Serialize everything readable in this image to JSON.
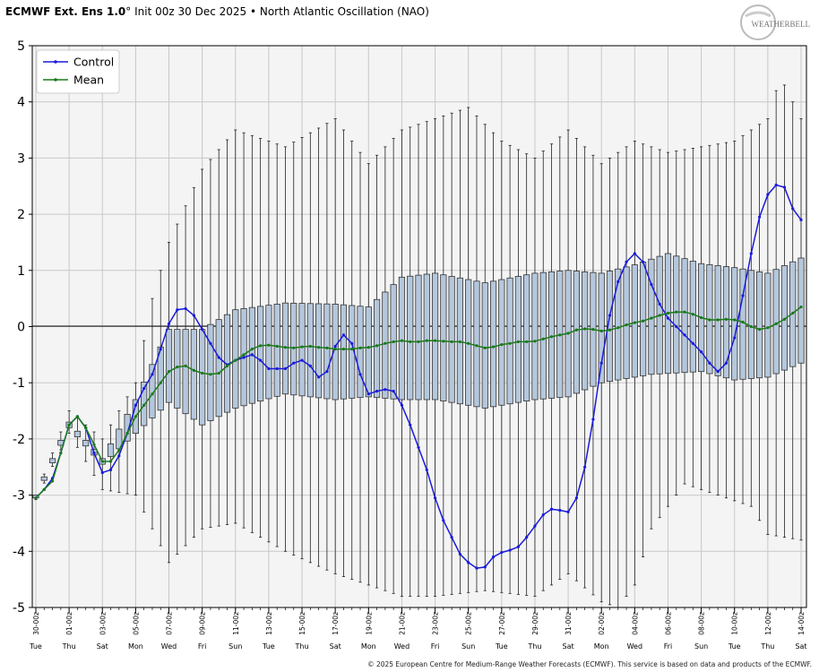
{
  "header": {
    "title_bold": "ECMWF Ext. Ens 1.0",
    "title_deg": "°",
    "title_rest": " Init 00z 30 Dec 2025 • North Atlantic Oscillation (NAO)"
  },
  "logo": {
    "text": "WEATHERBELL"
  },
  "footer": {
    "copyright": "© 2025 European Centre for Medium-Range Weather Forecasts (ECMWF). This service is based on data and products of the ECMWF."
  },
  "colors": {
    "control": "#1a1adc",
    "mean": "#1a7a1a",
    "box_fill": "#b5c7dc",
    "plot_bg": "#f4f4f4"
  },
  "chart_data": {
    "type": "box",
    "ylim": [
      -5,
      5
    ],
    "yticks": [
      -5,
      -4,
      -3,
      -2,
      -1,
      0,
      1,
      2,
      3,
      4,
      5
    ],
    "grid": true,
    "legend_position": "top-left",
    "legend": [
      {
        "name": "Control",
        "color": "#1a1adc"
      },
      {
        "name": "Mean",
        "color": "#1a7a1a"
      }
    ],
    "date_labels": [
      "30-00z",
      "01-00z",
      "03-00z",
      "05-00z",
      "07-00z",
      "09-00z",
      "11-00z",
      "13-00z",
      "15-00z",
      "17-00z",
      "19-00z",
      "21-00z",
      "23-00z",
      "25-00z",
      "27-00z",
      "29-00z",
      "31-00z",
      "02-00z",
      "04-00z",
      "06-00z",
      "08-00z",
      "10-00z",
      "12-00z",
      "14-00z"
    ],
    "day_labels": [
      "Tue",
      "Thu",
      "Sat",
      "Mon",
      "Wed",
      "Fri",
      "Sun",
      "Tue",
      "Thu",
      "Sat",
      "Mon",
      "Wed",
      "Fri",
      "Sun",
      "Tue",
      "Thu",
      "Sat",
      "Mon",
      "Wed",
      "Fri",
      "Sun",
      "Tue",
      "Thu",
      "Sat"
    ],
    "control_keys": [
      [
        0,
        -3.05
      ],
      [
        1,
        -2.9
      ],
      [
        2,
        -2.7
      ],
      [
        3,
        -2.25
      ],
      [
        4,
        -1.75
      ],
      [
        5,
        -1.6
      ],
      [
        6,
        -1.8
      ],
      [
        7,
        -2.25
      ],
      [
        8,
        -2.6
      ],
      [
        9,
        -2.55
      ],
      [
        10,
        -2.3
      ],
      [
        11,
        -1.9
      ],
      [
        12,
        -1.4
      ],
      [
        13,
        -1.1
      ],
      [
        14,
        -0.85
      ],
      [
        15,
        -0.4
      ],
      [
        16,
        0.05
      ],
      [
        17,
        0.3
      ],
      [
        18,
        0.32
      ],
      [
        19,
        0.2
      ],
      [
        20,
        -0.05
      ],
      [
        21,
        -0.3
      ],
      [
        22,
        -0.55
      ],
      [
        23,
        -0.68
      ],
      [
        24,
        -0.6
      ],
      [
        25,
        -0.55
      ],
      [
        26,
        -0.5
      ],
      [
        27,
        -0.6
      ],
      [
        28,
        -0.75
      ],
      [
        29,
        -0.75
      ],
      [
        30,
        -0.75
      ],
      [
        31,
        -0.65
      ],
      [
        32,
        -0.6
      ],
      [
        33,
        -0.7
      ],
      [
        34,
        -0.9
      ],
      [
        35,
        -0.8
      ],
      [
        36,
        -0.35
      ],
      [
        37,
        -0.15
      ],
      [
        38,
        -0.3
      ],
      [
        39,
        -0.85
      ],
      [
        40,
        -1.2
      ],
      [
        41,
        -1.15
      ],
      [
        42,
        -1.12
      ],
      [
        43,
        -1.15
      ],
      [
        44,
        -1.4
      ],
      [
        45,
        -1.75
      ],
      [
        46,
        -2.15
      ],
      [
        47,
        -2.55
      ],
      [
        48,
        -3.05
      ],
      [
        49,
        -3.45
      ],
      [
        50,
        -3.75
      ],
      [
        51,
        -4.05
      ],
      [
        52,
        -4.2
      ],
      [
        53,
        -4.3
      ],
      [
        54,
        -4.28
      ],
      [
        55,
        -4.1
      ],
      [
        56,
        -4.02
      ],
      [
        57,
        -3.98
      ],
      [
        58,
        -3.92
      ],
      [
        59,
        -3.75
      ],
      [
        60,
        -3.55
      ],
      [
        61,
        -3.35
      ],
      [
        62,
        -3.25
      ],
      [
        63,
        -3.27
      ],
      [
        64,
        -3.3
      ],
      [
        65,
        -3.05
      ],
      [
        66,
        -2.5
      ],
      [
        67,
        -1.65
      ],
      [
        68,
        -0.65
      ],
      [
        69,
        0.2
      ],
      [
        70,
        0.8
      ],
      [
        71,
        1.15
      ],
      [
        72,
        1.3
      ],
      [
        73,
        1.15
      ],
      [
        74,
        0.75
      ],
      [
        75,
        0.4
      ],
      [
        76,
        0.15
      ],
      [
        77,
        0.0
      ],
      [
        78,
        -0.15
      ],
      [
        79,
        -0.3
      ],
      [
        80,
        -0.45
      ],
      [
        81,
        -0.65
      ],
      [
        82,
        -0.8
      ],
      [
        83,
        -0.65
      ],
      [
        84,
        -0.2
      ],
      [
        85,
        0.55
      ],
      [
        86,
        1.3
      ],
      [
        87,
        1.95
      ],
      [
        88,
        2.35
      ],
      [
        89,
        2.52
      ],
      [
        90,
        2.48
      ],
      [
        91,
        2.1
      ],
      [
        92,
        1.9
      ]
    ],
    "mean_keys": [
      [
        0,
        -3.05
      ],
      [
        1,
        -2.9
      ],
      [
        2,
        -2.75
      ],
      [
        3,
        -2.25
      ],
      [
        4,
        -1.75
      ],
      [
        5,
        -1.6
      ],
      [
        6,
        -1.8
      ],
      [
        7,
        -2.1
      ],
      [
        8,
        -2.4
      ],
      [
        9,
        -2.4
      ],
      [
        10,
        -2.2
      ],
      [
        11,
        -1.9
      ],
      [
        12,
        -1.6
      ],
      [
        13,
        -1.4
      ],
      [
        14,
        -1.2
      ],
      [
        15,
        -1.0
      ],
      [
        16,
        -0.8
      ],
      [
        17,
        -0.72
      ],
      [
        18,
        -0.7
      ],
      [
        19,
        -0.78
      ],
      [
        20,
        -0.83
      ],
      [
        21,
        -0.85
      ],
      [
        22,
        -0.83
      ],
      [
        23,
        -0.7
      ],
      [
        24,
        -0.6
      ],
      [
        25,
        -0.5
      ],
      [
        26,
        -0.4
      ],
      [
        27,
        -0.34
      ],
      [
        28,
        -0.33
      ],
      [
        29,
        -0.35
      ],
      [
        30,
        -0.37
      ],
      [
        31,
        -0.38
      ],
      [
        32,
        -0.36
      ],
      [
        33,
        -0.35
      ],
      [
        34,
        -0.37
      ],
      [
        35,
        -0.38
      ],
      [
        36,
        -0.4
      ],
      [
        37,
        -0.4
      ],
      [
        38,
        -0.4
      ],
      [
        39,
        -0.38
      ],
      [
        40,
        -0.37
      ],
      [
        41,
        -0.34
      ],
      [
        42,
        -0.3
      ],
      [
        43,
        -0.27
      ],
      [
        44,
        -0.25
      ],
      [
        45,
        -0.27
      ],
      [
        46,
        -0.27
      ],
      [
        47,
        -0.25
      ],
      [
        48,
        -0.25
      ],
      [
        49,
        -0.26
      ],
      [
        50,
        -0.27
      ],
      [
        51,
        -0.27
      ],
      [
        52,
        -0.3
      ],
      [
        53,
        -0.34
      ],
      [
        54,
        -0.38
      ],
      [
        55,
        -0.36
      ],
      [
        56,
        -0.32
      ],
      [
        57,
        -0.3
      ],
      [
        58,
        -0.27
      ],
      [
        59,
        -0.27
      ],
      [
        60,
        -0.26
      ],
      [
        61,
        -0.22
      ],
      [
        62,
        -0.18
      ],
      [
        63,
        -0.15
      ],
      [
        64,
        -0.12
      ],
      [
        65,
        -0.06
      ],
      [
        66,
        -0.04
      ],
      [
        67,
        -0.05
      ],
      [
        68,
        -0.08
      ],
      [
        69,
        -0.06
      ],
      [
        70,
        -0.02
      ],
      [
        71,
        0.03
      ],
      [
        72,
        0.07
      ],
      [
        73,
        0.1
      ],
      [
        74,
        0.15
      ],
      [
        75,
        0.2
      ],
      [
        76,
        0.24
      ],
      [
        77,
        0.26
      ],
      [
        78,
        0.26
      ],
      [
        79,
        0.22
      ],
      [
        80,
        0.16
      ],
      [
        81,
        0.12
      ],
      [
        82,
        0.12
      ],
      [
        83,
        0.13
      ],
      [
        84,
        0.12
      ],
      [
        85,
        0.08
      ],
      [
        86,
        0.0
      ],
      [
        87,
        -0.05
      ],
      [
        88,
        -0.02
      ],
      [
        89,
        0.05
      ],
      [
        90,
        0.13
      ],
      [
        91,
        0.24
      ],
      [
        92,
        0.35
      ]
    ],
    "q1_keys": [
      [
        0,
        -3.05
      ],
      [
        4,
        -1.8
      ],
      [
        8,
        -2.45
      ],
      [
        12,
        -1.9
      ],
      [
        16,
        -1.35
      ],
      [
        20,
        -1.75
      ],
      [
        24,
        -1.45
      ],
      [
        30,
        -1.2
      ],
      [
        36,
        -1.3
      ],
      [
        40,
        -1.25
      ],
      [
        44,
        -1.3
      ],
      [
        48,
        -1.3
      ],
      [
        54,
        -1.45
      ],
      [
        60,
        -1.3
      ],
      [
        64,
        -1.25
      ],
      [
        68,
        -1.0
      ],
      [
        74,
        -0.85
      ],
      [
        80,
        -0.8
      ],
      [
        84,
        -0.95
      ],
      [
        88,
        -0.9
      ],
      [
        92,
        -0.65
      ]
    ],
    "q3_keys": [
      [
        0,
        -3.0
      ],
      [
        4,
        -1.7
      ],
      [
        8,
        -2.35
      ],
      [
        12,
        -1.3
      ],
      [
        16,
        -0.05
      ],
      [
        20,
        -0.05
      ],
      [
        24,
        0.3
      ],
      [
        30,
        0.42
      ],
      [
        36,
        0.4
      ],
      [
        40,
        0.35
      ],
      [
        44,
        0.88
      ],
      [
        48,
        0.95
      ],
      [
        54,
        0.78
      ],
      [
        60,
        0.95
      ],
      [
        64,
        1.0
      ],
      [
        68,
        0.95
      ],
      [
        72,
        1.1
      ],
      [
        76,
        1.3
      ],
      [
        80,
        1.12
      ],
      [
        84,
        1.05
      ],
      [
        88,
        0.95
      ],
      [
        92,
        1.22
      ]
    ],
    "lo_keys": [
      [
        0,
        -3.08
      ],
      [
        4,
        -1.9
      ],
      [
        8,
        -2.9
      ],
      [
        12,
        -3.0
      ],
      [
        16,
        -4.2
      ],
      [
        20,
        -3.6
      ],
      [
        24,
        -3.5
      ],
      [
        30,
        -4.0
      ],
      [
        36,
        -4.4
      ],
      [
        40,
        -4.6
      ],
      [
        44,
        -4.8
      ],
      [
        48,
        -4.8
      ],
      [
        54,
        -4.7
      ],
      [
        60,
        -4.8
      ],
      [
        64,
        -4.4
      ],
      [
        68,
        -4.9
      ],
      [
        70,
        -5.0
      ],
      [
        72,
        -4.6
      ],
      [
        74,
        -3.6
      ],
      [
        78,
        -2.8
      ],
      [
        82,
        -3.0
      ],
      [
        86,
        -3.2
      ],
      [
        88,
        -3.7
      ],
      [
        92,
        -3.8
      ]
    ],
    "hi_keys": [
      [
        0,
        -3.0
      ],
      [
        4,
        -1.5
      ],
      [
        8,
        -2.0
      ],
      [
        12,
        -1.0
      ],
      [
        14,
        0.5
      ],
      [
        16,
        1.5
      ],
      [
        20,
        2.8
      ],
      [
        24,
        3.5
      ],
      [
        30,
        3.2
      ],
      [
        36,
        3.7
      ],
      [
        40,
        2.9
      ],
      [
        44,
        3.5
      ],
      [
        48,
        3.7
      ],
      [
        52,
        3.9
      ],
      [
        56,
        3.3
      ],
      [
        60,
        3.0
      ],
      [
        64,
        3.5
      ],
      [
        68,
        2.9
      ],
      [
        72,
        3.3
      ],
      [
        76,
        3.1
      ],
      [
        80,
        3.2
      ],
      [
        84,
        3.3
      ],
      [
        88,
        3.7
      ],
      [
        89,
        4.2
      ],
      [
        90,
        4.3
      ],
      [
        92,
        3.7
      ]
    ]
  }
}
